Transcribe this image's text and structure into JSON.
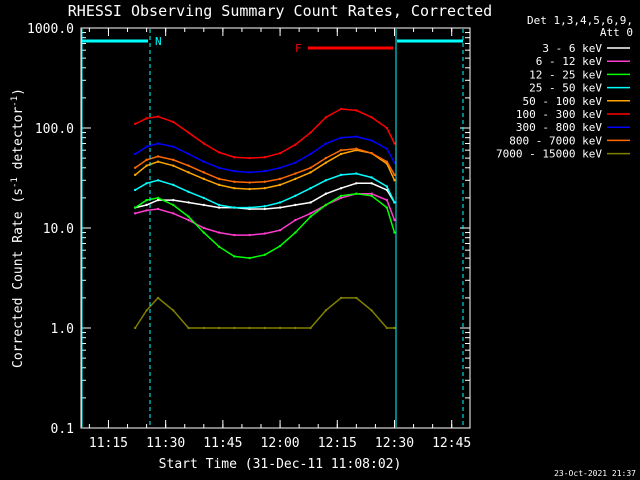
{
  "chart_data": {
    "type": "line",
    "title": "RHESSI Observing Summary Count Rates, Corrected",
    "xlabel": "Start Time (31-Dec-11 11:08:02)",
    "ylabel_main": "Corrected Count Rate (s",
    "ylabel_sup1": "-1",
    "ylabel_mid": " detector",
    "ylabel_sup2": "-1",
    "ylabel_end": ")",
    "yscale": "log",
    "ylim": [
      0.1,
      1000
    ],
    "xlim_minutes": [
      11.13,
      12.83
    ],
    "x_ticks": [
      "11:15",
      "11:30",
      "11:45",
      "12:00",
      "12:15",
      "12:30",
      "12:45"
    ],
    "y_ticks": [
      "0.1",
      "1.0",
      "10.0",
      "100.0",
      "1000.0"
    ],
    "grid": false,
    "legend_position": "right",
    "legend_header": [
      "Det 1,3,4,5,6,9,",
      "Att 0"
    ],
    "timestamp": "23-Oct-2021 21:37",
    "flags": {
      "N_label": "N",
      "F_label": "F"
    },
    "x": [
      "11:22",
      "11:25",
      "11:28",
      "11:32",
      "11:36",
      "11:40",
      "11:44",
      "11:48",
      "11:52",
      "11:56",
      "12:00",
      "12:04",
      "12:08",
      "12:12",
      "12:16",
      "12:20",
      "12:24",
      "12:28",
      "12:30"
    ],
    "series": [
      {
        "name": "3 - 6 keV",
        "color": "#ffffff",
        "values": [
          16,
          17,
          19,
          19,
          18,
          17,
          16,
          16,
          15.5,
          15.5,
          16,
          17,
          18,
          22,
          25,
          28,
          28,
          24,
          18
        ]
      },
      {
        "name": "6 - 12 keV",
        "color": "#ff3ccf",
        "values": [
          14,
          15,
          15.5,
          14,
          12,
          10,
          9,
          8.5,
          8.5,
          8.8,
          9.5,
          12,
          14,
          17,
          20,
          22,
          22,
          19,
          12
        ]
      },
      {
        "name": "12 - 25 keV",
        "color": "#00ff00",
        "values": [
          16,
          19,
          20,
          17,
          13,
          9,
          6.5,
          5.2,
          5,
          5.4,
          6.6,
          9,
          13,
          17,
          21,
          22,
          21,
          16,
          9
        ]
      },
      {
        "name": "25 - 50 keV",
        "color": "#00ffff",
        "values": [
          24,
          28,
          30,
          27,
          23,
          20,
          17,
          16,
          16,
          16.5,
          18,
          21,
          25,
          30,
          34,
          35,
          32,
          26,
          18
        ]
      },
      {
        "name": "50 - 100 keV",
        "color": "#ffa500",
        "values": [
          34,
          42,
          46,
          42,
          36,
          31,
          27,
          25,
          24.5,
          25,
          27,
          31,
          36,
          45,
          55,
          60,
          56,
          44,
          30
        ]
      },
      {
        "name": "100 - 300 keV",
        "color": "#ff0000",
        "values": [
          110,
          125,
          130,
          115,
          90,
          70,
          57,
          51,
          50,
          51,
          56,
          68,
          90,
          128,
          155,
          150,
          128,
          100,
          70
        ]
      },
      {
        "name": "300 - 800 keV",
        "color": "#0000ff",
        "values": [
          55,
          65,
          70,
          65,
          55,
          46,
          40,
          37,
          36,
          37,
          40,
          45,
          55,
          70,
          80,
          82,
          75,
          62,
          45
        ]
      },
      {
        "name": "800 - 7000 keV",
        "color": "#ff6a00",
        "values": [
          40,
          48,
          52,
          48,
          42,
          36,
          31,
          29,
          28.5,
          29,
          31,
          35,
          40,
          50,
          60,
          62,
          56,
          46,
          34
        ]
      },
      {
        "name": "7000 - 15000 keV",
        "color": "#808000",
        "values": [
          1,
          1.5,
          2,
          1.5,
          1,
          1,
          1,
          1,
          1,
          1,
          1,
          1,
          1,
          1.5,
          2,
          2,
          1.5,
          1,
          1
        ]
      }
    ]
  }
}
